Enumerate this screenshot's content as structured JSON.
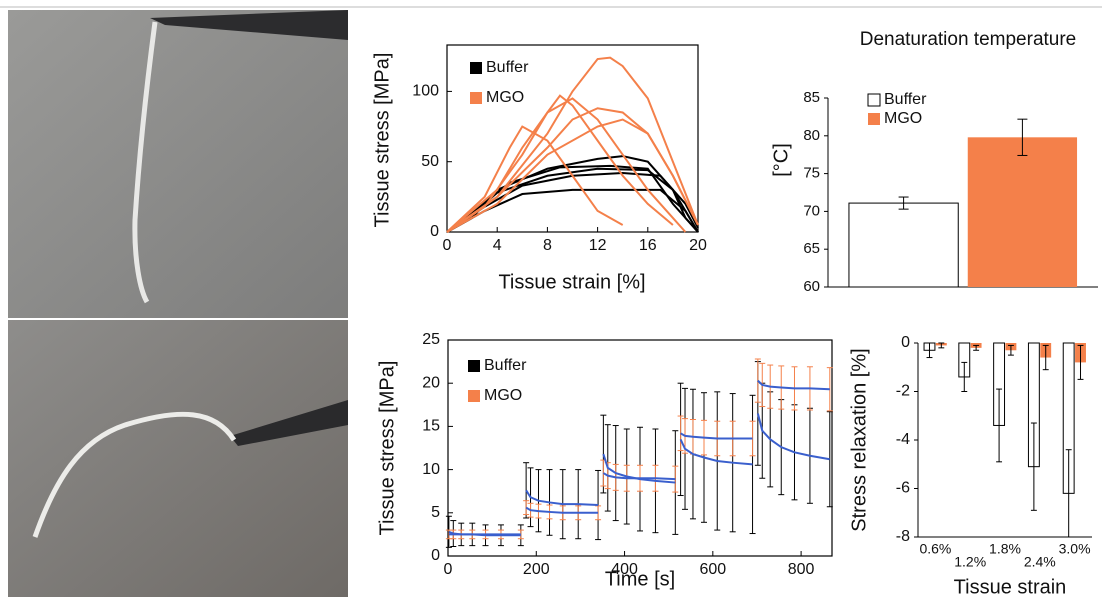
{
  "chart_data": [
    {
      "type": "line",
      "ylabel": "Tissue stress [MPa]",
      "xlabel": "Tissue strain [%]",
      "xlim": [
        0,
        20
      ],
      "xticks": [
        0,
        4,
        8,
        12,
        16,
        20
      ],
      "ylim": [
        0,
        133
      ],
      "yticks": [
        0,
        50,
        100
      ],
      "legend": "upper left",
      "series": [
        {
          "name": "Buffer",
          "color": "#000000",
          "curves": [
            {
              "x": [
                0,
                2,
                4,
                8,
                12,
                14,
                16,
                18,
                19,
                20
              ],
              "values": [
                0,
                10,
                30,
                45,
                52,
                54,
                50,
                30,
                10,
                0
              ]
            },
            {
              "x": [
                0,
                2,
                4,
                8,
                12,
                16,
                18,
                20
              ],
              "values": [
                0,
                12,
                28,
                40,
                45,
                44,
                30,
                0
              ]
            },
            {
              "x": [
                0,
                3,
                6,
                10,
                14,
                17,
                19,
                20
              ],
              "values": [
                0,
                15,
                27,
                30,
                30,
                30,
                15,
                0
              ]
            },
            {
              "x": [
                0,
                2,
                5,
                9,
                13,
                16,
                18,
                20
              ],
              "values": [
                0,
                14,
                35,
                46,
                47,
                45,
                20,
                0
              ]
            },
            {
              "x": [
                0,
                3,
                6,
                10,
                14,
                17,
                19,
                20
              ],
              "values": [
                0,
                18,
                33,
                40,
                42,
                40,
                20,
                3
              ]
            }
          ]
        },
        {
          "name": "MGO",
          "color": "#f4804a",
          "curves": [
            {
              "x": [
                0,
                4,
                8,
                10,
                12,
                13,
                14,
                16,
                18,
                20
              ],
              "values": [
                0,
                25,
                70,
                100,
                123,
                124,
                118,
                95,
                50,
                5
              ]
            },
            {
              "x": [
                0,
                3,
                6,
                8,
                9,
                10,
                12,
                14,
                16,
                18
              ],
              "values": [
                0,
                18,
                55,
                85,
                97,
                90,
                65,
                40,
                20,
                5
              ]
            },
            {
              "x": [
                0,
                4,
                6,
                8,
                10,
                12,
                14,
                16,
                18,
                19
              ],
              "values": [
                0,
                30,
                60,
                85,
                95,
                80,
                55,
                30,
                10,
                0
              ]
            },
            {
              "x": [
                0,
                3,
                5,
                6,
                8,
                10,
                12,
                14
              ],
              "values": [
                0,
                25,
                60,
                75,
                65,
                40,
                15,
                5
              ]
            },
            {
              "x": [
                0,
                4,
                8,
                10,
                12,
                14,
                16,
                18,
                20
              ],
              "values": [
                0,
                25,
                60,
                80,
                88,
                85,
                70,
                40,
                5
              ]
            },
            {
              "x": [
                0,
                4,
                8,
                12,
                14,
                16,
                18,
                20
              ],
              "values": [
                0,
                20,
                55,
                75,
                80,
                70,
                40,
                5
              ]
            }
          ]
        }
      ]
    },
    {
      "type": "bar",
      "title": "Denaturation temperature",
      "ylabel": "[°C]",
      "categories": [
        null
      ],
      "ylim": [
        60,
        85
      ],
      "yticks": [
        60,
        65,
        70,
        75,
        80,
        85
      ],
      "legend": "upper left",
      "series": [
        {
          "name": "Buffer",
          "color": "#ffffff",
          "values": [
            71.1
          ],
          "errors": [
            0.8
          ]
        },
        {
          "name": "MGO",
          "color": "#f4804a",
          "values": [
            79.8
          ],
          "errors": [
            2.4
          ]
        }
      ]
    },
    {
      "type": "errorbar",
      "ylabel": "Tissue stress [MPa]",
      "xlabel": "Time [s]",
      "mean_line_color": "#3a5fcd",
      "xlim": [
        0,
        870
      ],
      "xticks": [
        0,
        200,
        400,
        600,
        800
      ],
      "ylim": [
        0,
        25
      ],
      "yticks": [
        0,
        5,
        10,
        15,
        20,
        25
      ],
      "legend": "upper left",
      "x": [
        2,
        12,
        30,
        55,
        85,
        120,
        165,
        172,
        177,
        187,
        205,
        230,
        260,
        295,
        340,
        347,
        352,
        362,
        380,
        405,
        435,
        470,
        515,
        522,
        527,
        537,
        555,
        580,
        610,
        645,
        690,
        697,
        702,
        712,
        730,
        755,
        785,
        820,
        865
      ],
      "series": [
        {
          "name": "Buffer",
          "color": "#000000",
          "values": [
            2.8,
            2.6,
            2.5,
            2.5,
            2.4,
            2.4,
            2.4,
            null,
            7.6,
            6.8,
            6.4,
            6.2,
            6.0,
            6.0,
            5.9,
            null,
            11.8,
            10.2,
            9.6,
            9.2,
            8.9,
            8.7,
            8.5,
            null,
            13.5,
            12.4,
            11.8,
            11.4,
            11.0,
            10.8,
            10.6,
            null,
            16.5,
            14.5,
            13.5,
            12.6,
            12.0,
            11.6,
            11.2
          ],
          "errors": [
            1.8,
            1.5,
            1.3,
            1.3,
            1.2,
            1.2,
            1.2,
            null,
            3.2,
            3.4,
            3.6,
            3.8,
            4.0,
            4.0,
            4.0,
            null,
            4.5,
            5,
            5.5,
            5.5,
            6,
            6,
            6,
            null,
            6.5,
            7,
            7.5,
            7.5,
            8,
            8,
            8,
            null,
            6,
            5.5,
            5.5,
            5.5,
            5.5,
            5.5,
            5.5
          ]
        },
        {
          "name": "MGO",
          "color": "#f4804a",
          "values": [
            2.5,
            2.5,
            2.5,
            2.5,
            2.5,
            2.5,
            2.5,
            null,
            5.6,
            5.3,
            5.2,
            5.1,
            5.0,
            5.0,
            5.0,
            null,
            9.6,
            9.3,
            9.1,
            9.0,
            9.0,
            9.0,
            8.9,
            null,
            14.2,
            13.9,
            13.8,
            13.7,
            13.6,
            13.6,
            13.6,
            null,
            20.3,
            19.8,
            19.6,
            19.5,
            19.4,
            19.4,
            19.3
          ],
          "errors": [
            0.5,
            0.5,
            0.5,
            0.5,
            0.5,
            0.5,
            0.5,
            null,
            0.8,
            0.8,
            0.8,
            0.8,
            0.8,
            0.8,
            0.8,
            null,
            1.5,
            1.5,
            1.5,
            1.5,
            1.5,
            1.5,
            1.5,
            null,
            2,
            2,
            2,
            2,
            2,
            2,
            2,
            null,
            2.5,
            2.5,
            2.5,
            2.5,
            2.5,
            2.5,
            2.5
          ]
        }
      ]
    },
    {
      "type": "bar",
      "ylabel": "Stress relaxation [%]",
      "xlabel": "Tissue strain",
      "categories": [
        "0.6%",
        "1.2%",
        "1.8%",
        "2.4%",
        "3.0%"
      ],
      "ylim": [
        -8,
        0
      ],
      "yticks": [
        -8,
        -6,
        -4,
        -2,
        0
      ],
      "series": [
        {
          "color": "#ffffff",
          "values": [
            -0.3,
            -1.4,
            -3.4,
            -5.1,
            -6.2
          ],
          "errors": [
            0.3,
            0.6,
            1.5,
            1.8,
            1.8
          ]
        },
        {
          "color": "#f4804a",
          "values": [
            -0.1,
            -0.2,
            -0.3,
            -0.6,
            -0.8
          ],
          "errors": [
            0.1,
            0.1,
            0.2,
            0.5,
            0.7
          ]
        }
      ]
    }
  ]
}
